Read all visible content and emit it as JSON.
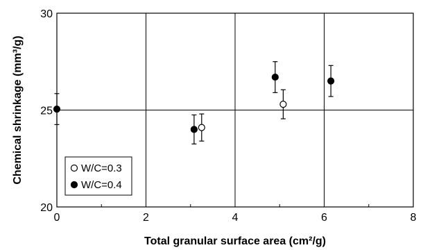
{
  "chart_data": {
    "type": "scatter",
    "xlabel": "Total granular surface area (cm²/g)",
    "ylabel": "Chemical shrinkage (mm³/g)",
    "xlim": [
      0,
      8
    ],
    "ylim": [
      20,
      30
    ],
    "x_ticks": [
      "0",
      "2",
      "4",
      "6",
      "8"
    ],
    "y_ticks": [
      "20",
      "25",
      "30"
    ],
    "grid": true,
    "legend_position": "bottom-left",
    "colors": {
      "axis": "#000000",
      "filled_marker": "#000000",
      "open_marker_fill": "#ffffff"
    },
    "series": [
      {
        "name": "W/C=0.3",
        "marker": "open-circle",
        "points": [
          {
            "x": 3.25,
            "y": 24.1,
            "err": 0.7
          },
          {
            "x": 5.08,
            "y": 25.3,
            "err": 0.75
          }
        ]
      },
      {
        "name": "W/C=0.4",
        "marker": "filled-circle",
        "points": [
          {
            "x": 0.0,
            "y": 25.05,
            "err": 0.8
          },
          {
            "x": 3.08,
            "y": 24.0,
            "err": 0.75
          },
          {
            "x": 4.9,
            "y": 26.7,
            "err": 0.8
          },
          {
            "x": 6.15,
            "y": 26.5,
            "err": 0.8
          }
        ]
      }
    ]
  }
}
